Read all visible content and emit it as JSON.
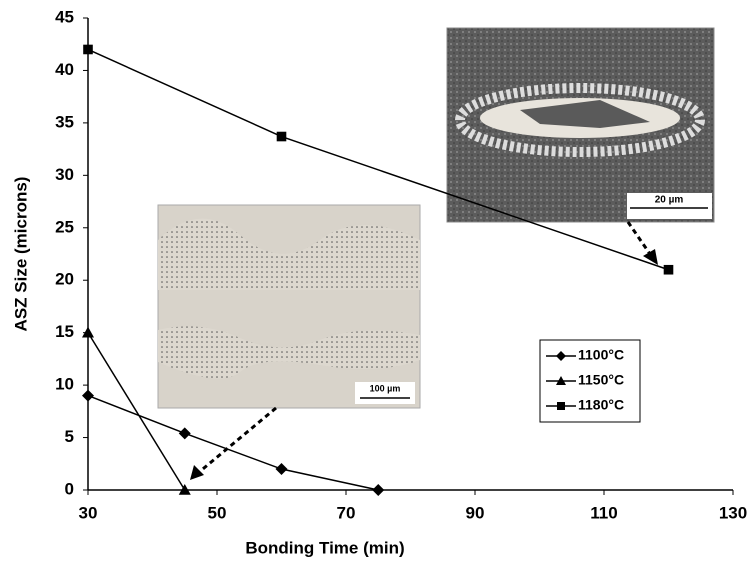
{
  "chart_data": {
    "type": "line",
    "xlabel": "Bonding Time (min)",
    "ylabel": "ASZ Size (microns)",
    "xlim": [
      30,
      130
    ],
    "xticks": [
      30,
      50,
      70,
      90,
      110,
      130
    ],
    "ylim": [
      0,
      45
    ],
    "yticks": [
      0,
      5,
      10,
      15,
      20,
      25,
      30,
      35,
      40,
      45
    ],
    "grid": false,
    "legend": "lower right",
    "series": [
      {
        "name": "1100°C",
        "color": "#000000",
        "marker": "diamond",
        "x": [
          30,
          45,
          60,
          75
        ],
        "values": [
          9,
          5.4,
          2,
          0
        ]
      },
      {
        "name": "1150°C",
        "color": "#000000",
        "marker": "triangle",
        "x": [
          30,
          45
        ],
        "values": [
          15,
          0
        ]
      },
      {
        "name": "1180°C",
        "color": "#000000",
        "marker": "square",
        "x": [
          30,
          60,
          120
        ],
        "values": [
          42,
          33.7,
          21
        ]
      }
    ],
    "insets": [
      {
        "scale_label": "20 µm"
      },
      {
        "scale_label": "100 µm"
      }
    ]
  }
}
